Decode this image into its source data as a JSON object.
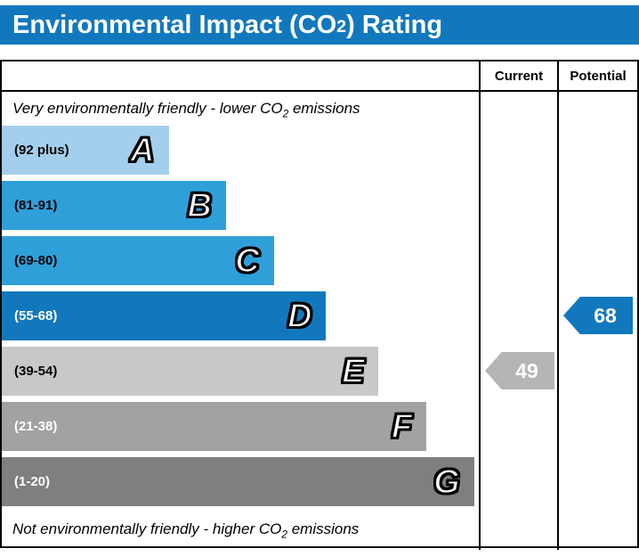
{
  "title": {
    "prefix": "Environmental Impact (CO",
    "sub": "2",
    "suffix": ") Rating"
  },
  "table": {
    "header": {
      "current": "Current",
      "potential": "Potential"
    },
    "top_note": {
      "prefix": "Very environmentally friendly - lower CO",
      "sub": "2",
      "suffix": " emissions"
    },
    "bottom_note": {
      "prefix": "Not environmentally friendly - higher CO",
      "sub": "2",
      "suffix": " emissions"
    },
    "bands": [
      {
        "letter": "A",
        "range": "(92 plus)",
        "color": "#a3cfec",
        "width": "35%",
        "range_color": "#000000"
      },
      {
        "letter": "B",
        "range": "(81-91)",
        "color": "#2f9fda",
        "width": "47%",
        "range_color": "#000000"
      },
      {
        "letter": "C",
        "range": "(69-80)",
        "color": "#2f9fda",
        "width": "57%",
        "range_color": "#000000"
      },
      {
        "letter": "D",
        "range": "(55-68)",
        "color": "#1278bd",
        "width": "68%",
        "range_color": "#ffffff"
      },
      {
        "letter": "E",
        "range": "(39-54)",
        "color": "#c8c8c8",
        "width": "79%",
        "range_color": "#000000"
      },
      {
        "letter": "F",
        "range": "(21-38)",
        "color": "#a2a2a2",
        "width": "89%",
        "range_color": "#ffffff"
      },
      {
        "letter": "G",
        "range": "(1-20)",
        "color": "#7f7f7f",
        "width": "99%",
        "range_color": "#ffffff"
      }
    ],
    "current": {
      "value": "49",
      "color": "#b5b5b5"
    },
    "potential": {
      "value": "68",
      "color": "#1278bd"
    }
  },
  "chart_data": {
    "type": "bar",
    "title": "Environmental Impact (CO2) Rating",
    "categories": [
      "A",
      "B",
      "C",
      "D",
      "E",
      "F",
      "G"
    ],
    "band_ranges": [
      "92 plus",
      "81-91",
      "69-80",
      "55-68",
      "39-54",
      "21-38",
      "1-20"
    ],
    "band_widths_pct": [
      35,
      47,
      57,
      68,
      79,
      89,
      99
    ],
    "band_colors": [
      "#a3cfec",
      "#2f9fda",
      "#2f9fda",
      "#1278bd",
      "#c8c8c8",
      "#a2a2a2",
      "#7f7f7f"
    ],
    "current_rating": 49,
    "current_band": "E",
    "potential_rating": 68,
    "potential_band": "D",
    "top_annotation": "Very environmentally friendly - lower CO2 emissions",
    "bottom_annotation": "Not environmentally friendly - higher CO2 emissions",
    "columns": [
      "Current",
      "Potential"
    ]
  }
}
